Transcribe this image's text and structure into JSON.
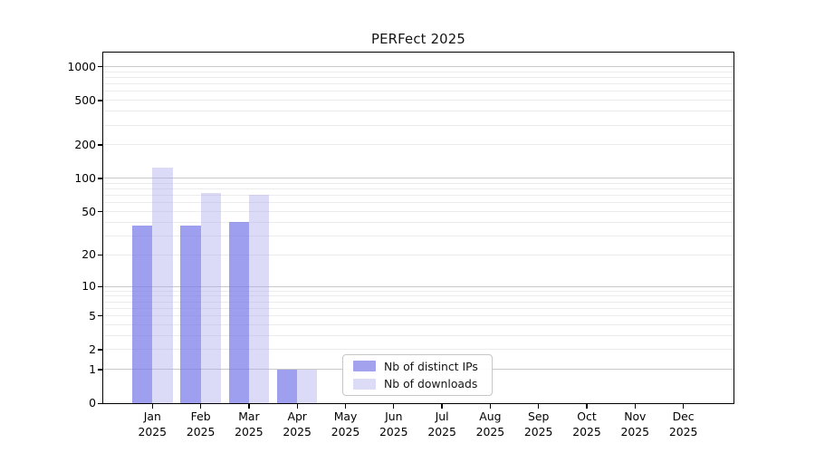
{
  "figure": {
    "background": "#ffffff"
  },
  "chart_data": {
    "type": "bar",
    "title": "PERFect 2025",
    "categories": [
      "Jan",
      "Feb",
      "Mar",
      "Apr",
      "May",
      "Jun",
      "Jul",
      "Aug",
      "Sep",
      "Oct",
      "Nov",
      "Dec"
    ],
    "year_label": "2025",
    "series": [
      {
        "name": "Nb of distinct IPs",
        "color": "#a2a2ee",
        "bar_fill": "rgba(118,118,232,0.70)",
        "values": [
          37,
          37,
          40,
          1,
          0,
          0,
          0,
          0,
          0,
          0,
          0,
          0
        ]
      },
      {
        "name": "Nb of downloads",
        "color": "#dcdcf7",
        "bar_fill": "rgba(170,170,238,0.42)",
        "values": [
          124,
          74,
          71,
          1,
          0,
          0,
          0,
          0,
          0,
          0,
          0,
          0
        ]
      }
    ],
    "y_ticks": [
      0,
      1,
      2,
      5,
      10,
      20,
      50,
      100,
      200,
      500,
      1000
    ],
    "y_scale": "log10(1+y)",
    "ylim": [
      0,
      1000
    ],
    "grid": true,
    "legend_position": "lower-center-inside",
    "axis_color": "#000000",
    "grid_major_color": "#c9c9c9",
    "grid_minor_color": "#ececec"
  }
}
